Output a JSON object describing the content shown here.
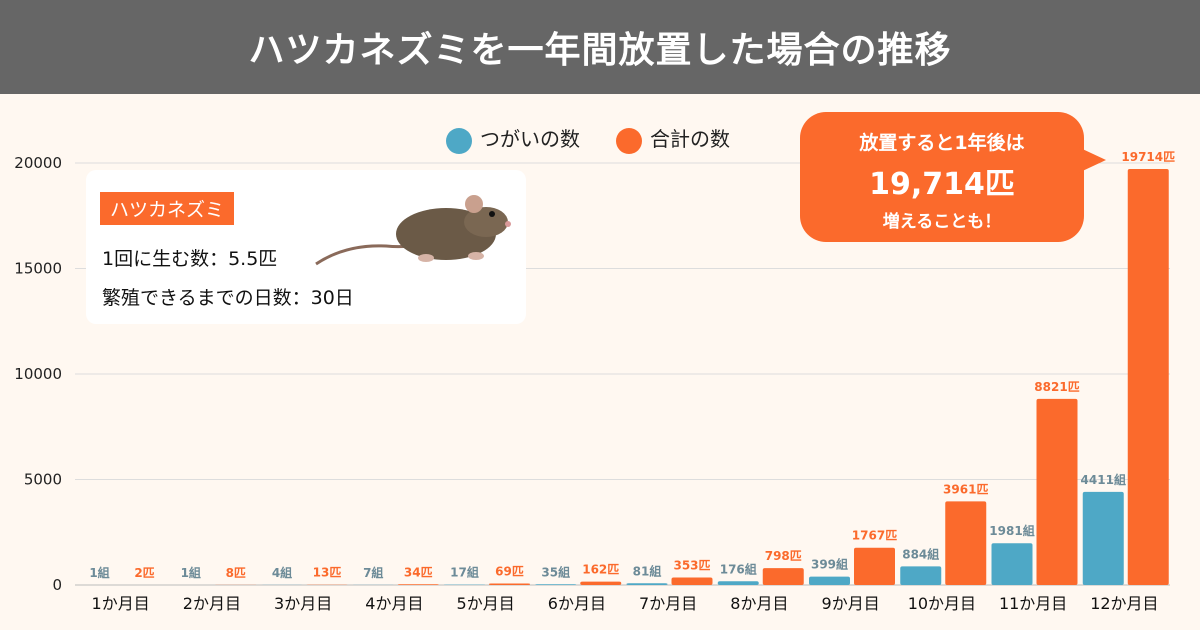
{
  "title": "ハツカネズミを一年間放置した場合の推移",
  "legend": {
    "pairs": "つがいの数",
    "total": "合計の数"
  },
  "info": {
    "tag": "ハツカネズミ",
    "line1": "1回に生む数：5.5匹",
    "line2": "繁殖できるまでの日数：30日"
  },
  "callout": {
    "line1": "放置すると1年後は",
    "line2": "19,714匹",
    "line3": "増えることも！"
  },
  "chart_data": {
    "type": "bar",
    "categories": [
      "1か月目",
      "2か月目",
      "3か月目",
      "4か月目",
      "5か月目",
      "6か月目",
      "7か月目",
      "8か月目",
      "9か月目",
      "10か月目",
      "11か月目",
      "12か月目"
    ],
    "series": [
      {
        "name": "つがいの数",
        "unit": "組",
        "color": "#4ea8c6",
        "label_color": "#6d8b98",
        "values": [
          1,
          1,
          4,
          7,
          17,
          35,
          81,
          176,
          399,
          884,
          1981,
          4411
        ]
      },
      {
        "name": "合計の数",
        "unit": "匹",
        "color": "#fb6a2c",
        "label_color": "#fb6a2c",
        "values": [
          2,
          8,
          13,
          34,
          69,
          162,
          353,
          798,
          1767,
          3961,
          8821,
          19714
        ]
      }
    ],
    "yticks": [
      0,
      5000,
      10000,
      15000,
      20000
    ],
    "ylim": [
      0,
      20000
    ],
    "grid": true,
    "legend_position": "top"
  }
}
